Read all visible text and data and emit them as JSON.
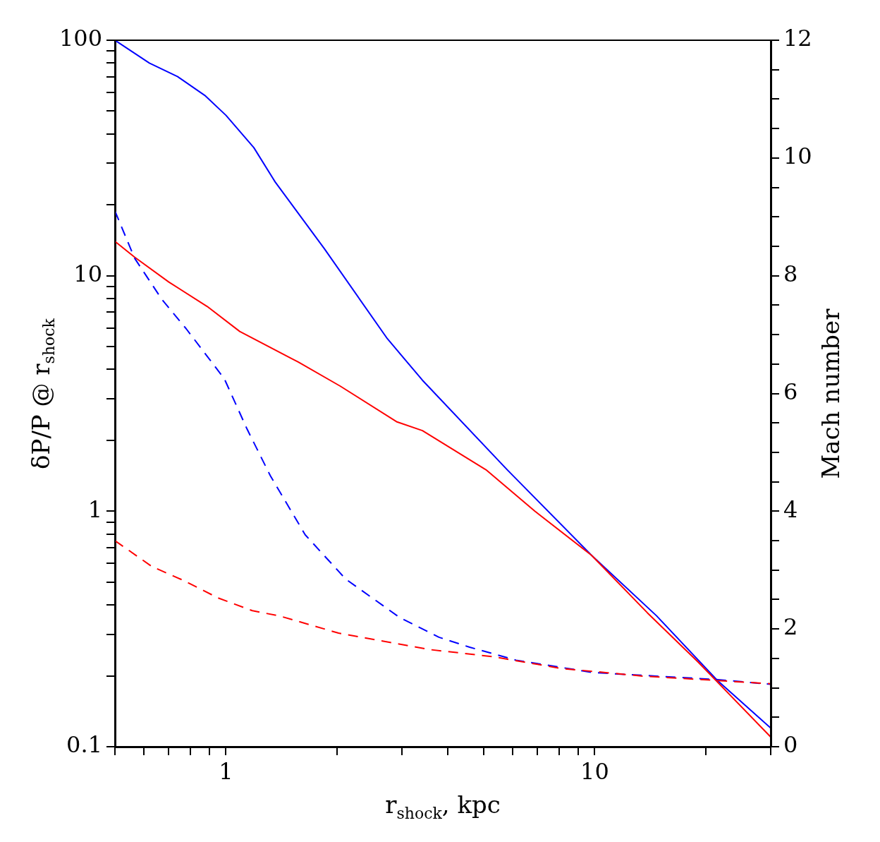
{
  "chart_data": {
    "type": "line",
    "xlabel": "r$_{shock}$, kpc",
    "ylabel": "δP/P @ r$_{shock}$",
    "y2label": "Mach number",
    "log": "xy",
    "grid": false,
    "legend": false,
    "marker": "none",
    "xlim": [
      0.5,
      30
    ],
    "xticks": [
      {
        "value": 0.5,
        "label": null
      },
      {
        "value": 0.6,
        "label": null
      },
      {
        "value": 0.7,
        "label": null
      },
      {
        "value": 0.8,
        "label": null
      },
      {
        "value": 0.9,
        "label": null
      },
      1,
      {
        "value": 2,
        "label": null
      },
      {
        "value": 3,
        "label": null
      },
      {
        "value": 4,
        "label": null
      },
      {
        "value": 5,
        "label": null
      },
      {
        "value": 6,
        "label": null
      },
      {
        "value": 7,
        "label": null
      },
      {
        "value": 8,
        "label": null
      },
      {
        "value": 9,
        "label": null
      },
      10,
      {
        "value": 20,
        "label": null
      },
      {
        "value": 30,
        "label": null
      }
    ],
    "ylim": [
      0.1,
      100
    ],
    "yticks": [
      0.1,
      {
        "value": 0.2,
        "label": null
      },
      {
        "value": 0.3,
        "label": null
      },
      {
        "value": 0.4,
        "label": null
      },
      {
        "value": 0.5,
        "label": null
      },
      {
        "value": 0.6,
        "label": null
      },
      {
        "value": 0.7,
        "label": null
      },
      {
        "value": 0.8,
        "label": null
      },
      {
        "value": 0.9,
        "label": null
      },
      1,
      {
        "value": 2,
        "label": null
      },
      {
        "value": 3,
        "label": null
      },
      {
        "value": 4,
        "label": null
      },
      {
        "value": 5,
        "label": null
      },
      {
        "value": 6,
        "label": null
      },
      {
        "value": 7,
        "label": null
      },
      {
        "value": 8,
        "label": null
      },
      {
        "value": 9,
        "label": null
      },
      10,
      {
        "value": 20,
        "label": null
      },
      {
        "value": 30,
        "label": null
      },
      {
        "value": 40,
        "label": null
      },
      {
        "value": 50,
        "label": null
      },
      {
        "value": 60,
        "label": null
      },
      {
        "value": 70,
        "label": null
      },
      {
        "value": 80,
        "label": null
      },
      {
        "value": 90,
        "label": null
      },
      100
    ],
    "y2lim": [
      0,
      12
    ],
    "y2ticks": [
      0,
      {
        "value": 0.5,
        "label": null
      },
      {
        "value": 1,
        "label": null
      },
      {
        "value": 1.5,
        "label": null
      },
      2,
      {
        "value": 2.5,
        "label": null
      },
      {
        "value": 3,
        "label": null
      },
      {
        "value": 3.5,
        "label": null
      },
      4,
      {
        "value": 4.5,
        "label": null
      },
      {
        "value": 5,
        "label": null
      },
      {
        "value": 5.5,
        "label": null
      },
      6,
      {
        "value": 6.5,
        "label": null
      },
      {
        "value": 7,
        "label": null
      },
      {
        "value": 7.5,
        "label": null
      },
      8,
      {
        "value": 8.5,
        "label": null
      },
      {
        "value": 9,
        "label": null
      },
      {
        "value": 9.5,
        "label": null
      },
      10,
      {
        "value": 10.5,
        "label": null
      },
      {
        "value": 11,
        "label": null
      },
      {
        "value": 11.5,
        "label": null
      },
      12
    ],
    "series": [
      {
        "color": "#0000ff",
        "line_style": "solid",
        "x": [
          0.5,
          0.62,
          0.74,
          0.88,
          1,
          1.19,
          1.36,
          1.85,
          2.74,
          3.41,
          5.79,
          9.8,
          14.7,
          21.6,
          30
        ],
        "values": [
          100,
          80,
          70,
          58,
          48,
          35,
          25,
          13,
          5.4,
          3.6,
          1.5,
          0.65,
          0.36,
          0.19,
          0.12
        ]
      },
      {
        "color": "#ff0000",
        "line_style": "solid",
        "x": [
          0.5,
          0.565,
          0.7,
          0.89,
          1.09,
          1.57,
          2.04,
          2.9,
          3.41,
          5.07,
          6.88,
          9.8,
          13.9,
          19,
          30
        ],
        "values": [
          14,
          12,
          9.4,
          7.4,
          5.8,
          4.3,
          3.4,
          2.4,
          2.2,
          1.5,
          1.0,
          0.65,
          0.37,
          0.23,
          0.11
        ]
      },
      {
        "color": "#0000ff",
        "line_style": "dashed",
        "axis": "y2",
        "x": [
          0.5,
          0.565,
          0.67,
          0.78,
          0.99,
          1.14,
          1.32,
          1.64,
          2.11,
          2.95,
          3.78,
          4.58,
          6.12,
          9.9,
          21.6,
          30
        ],
        "values": [
          9.1,
          8.3,
          7.6,
          7.1,
          6.25,
          5.4,
          4.6,
          3.6,
          2.85,
          2.2,
          1.86,
          1.69,
          1.47,
          1.26,
          1.14,
          1.06
        ]
      },
      {
        "color": "#ff0000",
        "line_style": "dashed",
        "axis": "y2",
        "x": [
          0.5,
          0.63,
          0.77,
          0.95,
          1.18,
          1.4,
          2.02,
          3.57,
          5.29,
          8.1,
          13.5,
          30
        ],
        "values": [
          3.5,
          3.06,
          2.82,
          2.53,
          2.31,
          2.22,
          1.93,
          1.65,
          1.53,
          1.33,
          1.2,
          1.07
        ]
      }
    ]
  }
}
